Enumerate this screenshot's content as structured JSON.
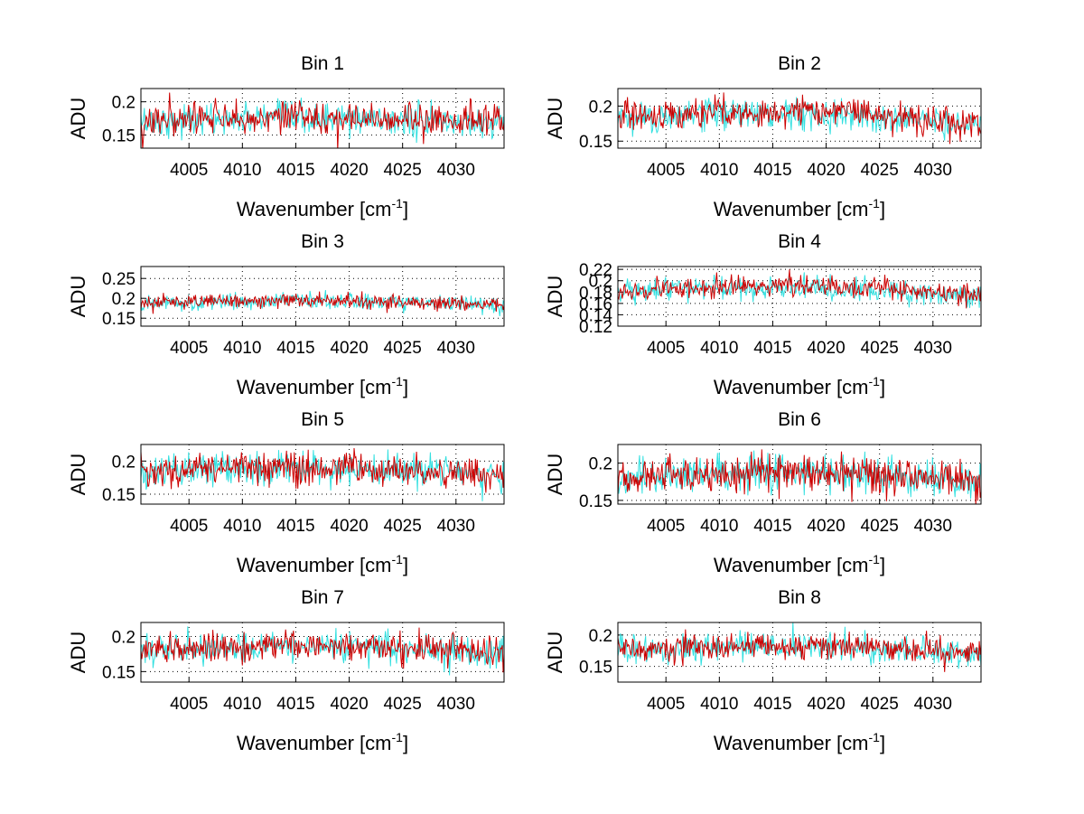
{
  "chart_data": [
    {
      "type": "line",
      "title": "Bin 1",
      "xlabel": "Wavenumber [cm",
      "xlabel_sup": "-1",
      "xlabel_end": "]",
      "ylabel": "ADU",
      "xlim": [
        4000.5,
        4034.5
      ],
      "ylim": [
        0.13,
        0.22
      ],
      "xticks": [
        "4005",
        "4010",
        "4015",
        "4020",
        "4025",
        "4030"
      ],
      "yticks": [
        "0.15",
        "0.2"
      ],
      "series": [
        {
          "color": "#33e0e0",
          "mean": 0.17,
          "noise": 0.012,
          "amp": 0.004
        },
        {
          "color": "#cc0000",
          "mean": 0.172,
          "noise": 0.012,
          "amp": 0.004
        }
      ]
    },
    {
      "type": "line",
      "title": "Bin 2",
      "xlabel": "Wavenumber [cm",
      "xlabel_sup": "-1",
      "xlabel_end": "]",
      "ylabel": "ADU",
      "xlim": [
        4000.5,
        4034.5
      ],
      "ylim": [
        0.14,
        0.225
      ],
      "xticks": [
        "4005",
        "4010",
        "4015",
        "4020",
        "4025",
        "4030"
      ],
      "yticks": [
        "0.15",
        "0.2"
      ],
      "series": [
        {
          "color": "#33e0e0",
          "mean": 0.18,
          "noise": 0.011,
          "amp": 0.01
        },
        {
          "color": "#cc0000",
          "mean": 0.182,
          "noise": 0.011,
          "amp": 0.01
        }
      ]
    },
    {
      "type": "line",
      "title": "Bin 3",
      "xlabel": "Wavenumber [cm",
      "xlabel_sup": "-1",
      "xlabel_end": "]",
      "ylabel": "ADU",
      "xlim": [
        4000.5,
        4034.5
      ],
      "ylim": [
        0.13,
        0.28
      ],
      "xticks": [
        "4005",
        "4010",
        "4015",
        "4020",
        "4025",
        "4030"
      ],
      "yticks": [
        "0.15",
        "0.2",
        "0.25"
      ],
      "series": [
        {
          "color": "#33e0e0",
          "mean": 0.185,
          "noise": 0.01,
          "amp": 0.008
        },
        {
          "color": "#cc0000",
          "mean": 0.187,
          "noise": 0.009,
          "amp": 0.008
        }
      ]
    },
    {
      "type": "line",
      "title": "Bin 4",
      "xlabel": "Wavenumber [cm",
      "xlabel_sup": "-1",
      "xlabel_end": "]",
      "ylabel": "ADU",
      "xlim": [
        4000.5,
        4034.5
      ],
      "ylim": [
        0.12,
        0.225
      ],
      "xticks": [
        "4005",
        "4010",
        "4015",
        "4020",
        "4025",
        "4030"
      ],
      "yticks": [
        "0.12",
        "0.14",
        "0.16",
        "0.18",
        "0.2",
        "0.22"
      ],
      "series": [
        {
          "color": "#33e0e0",
          "mean": 0.18,
          "noise": 0.01,
          "amp": 0.008
        },
        {
          "color": "#cc0000",
          "mean": 0.182,
          "noise": 0.009,
          "amp": 0.008
        }
      ]
    },
    {
      "type": "line",
      "title": "Bin 5",
      "xlabel": "Wavenumber [cm",
      "xlabel_sup": "-1",
      "xlabel_end": "]",
      "ylabel": "ADU",
      "xlim": [
        4000.5,
        4034.5
      ],
      "ylim": [
        0.135,
        0.225
      ],
      "xticks": [
        "4005",
        "4010",
        "4015",
        "4020",
        "4025",
        "4030"
      ],
      "yticks": [
        "0.15",
        "0.2"
      ],
      "series": [
        {
          "color": "#33e0e0",
          "mean": 0.183,
          "noise": 0.012,
          "amp": 0.007
        },
        {
          "color": "#cc0000",
          "mean": 0.184,
          "noise": 0.012,
          "amp": 0.007
        }
      ]
    },
    {
      "type": "line",
      "title": "Bin 6",
      "xlabel": "Wavenumber [cm",
      "xlabel_sup": "-1",
      "xlabel_end": "]",
      "ylabel": "ADU",
      "xlim": [
        4000.5,
        4034.5
      ],
      "ylim": [
        0.145,
        0.225
      ],
      "xticks": [
        "4005",
        "4010",
        "4015",
        "4020",
        "4025",
        "4030"
      ],
      "yticks": [
        "0.15",
        "0.2"
      ],
      "series": [
        {
          "color": "#33e0e0",
          "mean": 0.18,
          "noise": 0.012,
          "amp": 0.007
        },
        {
          "color": "#cc0000",
          "mean": 0.181,
          "noise": 0.012,
          "amp": 0.007
        }
      ]
    },
    {
      "type": "line",
      "title": "Bin 7",
      "xlabel": "Wavenumber [cm",
      "xlabel_sup": "-1",
      "xlabel_end": "]",
      "ylabel": "ADU",
      "xlim": [
        4000.5,
        4034.5
      ],
      "ylim": [
        0.135,
        0.22
      ],
      "xticks": [
        "4005",
        "4010",
        "4015",
        "4020",
        "4025",
        "4030"
      ],
      "yticks": [
        "0.15",
        "0.2"
      ],
      "series": [
        {
          "color": "#33e0e0",
          "mean": 0.178,
          "noise": 0.011,
          "amp": 0.007
        },
        {
          "color": "#cc0000",
          "mean": 0.18,
          "noise": 0.011,
          "amp": 0.007
        }
      ]
    },
    {
      "type": "line",
      "title": "Bin 8",
      "xlabel": "Wavenumber [cm",
      "xlabel_sup": "-1",
      "xlabel_end": "]",
      "ylabel": "ADU",
      "xlim": [
        4000.5,
        4034.5
      ],
      "ylim": [
        0.125,
        0.22
      ],
      "xticks": [
        "4005",
        "4010",
        "4015",
        "4020",
        "4025",
        "4030"
      ],
      "yticks": [
        "0.15",
        "0.2"
      ],
      "series": [
        {
          "color": "#33e0e0",
          "mean": 0.175,
          "noise": 0.011,
          "amp": 0.006
        },
        {
          "color": "#cc0000",
          "mean": 0.176,
          "noise": 0.011,
          "amp": 0.006
        }
      ]
    }
  ]
}
